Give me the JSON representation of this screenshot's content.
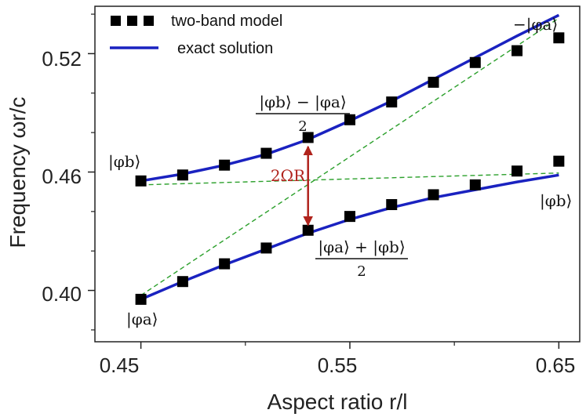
{
  "chart_data": {
    "type": "line",
    "xlabel": "Aspect ratio r/l",
    "ylabel": "Frequency ωr/c",
    "xlim": [
      0.428,
      0.66
    ],
    "ylim": [
      0.374,
      0.544
    ],
    "x_ticks": [
      "0.45",
      "0.55",
      "0.65"
    ],
    "y_ticks": [
      "0.40",
      "0.46",
      "0.52"
    ],
    "legend_position": "top-left",
    "legend": [
      {
        "label": "two-band model",
        "marker": "square",
        "color": "#000000"
      },
      {
        "label": "exact solution",
        "marker": "line",
        "color": "#1a22c0"
      }
    ],
    "series": [
      {
        "name": "two-band model",
        "kind": "markers",
        "branch": "upper",
        "x": [
          0.45,
          0.47,
          0.49,
          0.51,
          0.53,
          0.55,
          0.57,
          0.59,
          0.61,
          0.63,
          0.65
        ],
        "y": [
          0.4555,
          0.4585,
          0.4635,
          0.4695,
          0.4775,
          0.4865,
          0.4955,
          0.5055,
          0.5155,
          0.5215,
          0.528
        ]
      },
      {
        "name": "two-band model",
        "kind": "markers",
        "branch": "lower",
        "x": [
          0.45,
          0.47,
          0.49,
          0.51,
          0.53,
          0.55,
          0.57,
          0.59,
          0.61,
          0.63,
          0.65
        ],
        "y": [
          0.3955,
          0.4045,
          0.4135,
          0.4215,
          0.4305,
          0.4375,
          0.4435,
          0.4485,
          0.4535,
          0.4605,
          0.4655
        ]
      },
      {
        "name": "exact solution",
        "kind": "line",
        "branch": "upper",
        "x": [
          0.45,
          0.47,
          0.49,
          0.51,
          0.53,
          0.55,
          0.57,
          0.59,
          0.61,
          0.63,
          0.65
        ],
        "y": [
          0.4555,
          0.459,
          0.4635,
          0.469,
          0.4765,
          0.486,
          0.496,
          0.507,
          0.518,
          0.529,
          0.5395
        ]
      },
      {
        "name": "exact solution",
        "kind": "line",
        "branch": "lower",
        "x": [
          0.45,
          0.47,
          0.49,
          0.51,
          0.53,
          0.55,
          0.57,
          0.59,
          0.61,
          0.63,
          0.65
        ],
        "y": [
          0.3955,
          0.4045,
          0.413,
          0.421,
          0.429,
          0.436,
          0.442,
          0.447,
          0.451,
          0.455,
          0.4585
        ]
      },
      {
        "kind": "dashed",
        "x": [
          0.45,
          0.65
        ],
        "y": [
          0.4535,
          0.4595
        ]
      },
      {
        "kind": "dashed",
        "x": [
          0.45,
          0.65
        ],
        "y": [
          0.3975,
          0.538
        ]
      }
    ],
    "annotations": {
      "phi_b_left": "|φb⟩",
      "phi_b_right": "|φb⟩",
      "phi_a_left": "|φa⟩",
      "neg_phi_a_right": "−|φa⟩",
      "upper_mix_num": "|φb⟩ − |φa⟩",
      "upper_mix_den": "2",
      "lower_mix_num": "|φa⟩ + |φb⟩",
      "lower_mix_den": "2",
      "rabi_gap": "2ΩR",
      "rabi_gap_x": 0.53,
      "rabi_gap_y": [
        0.4315,
        0.4745
      ]
    },
    "colors": {
      "line": "#1a22c0",
      "marker": "#000000",
      "dashed": "#2ca02c",
      "arrow": "#b0231c"
    }
  }
}
